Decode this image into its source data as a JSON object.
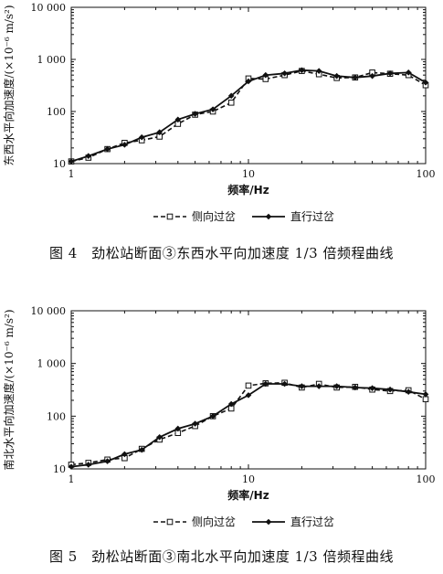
{
  "chart_data": [
    {
      "type": "line",
      "scale": "log-log",
      "xlabel": "频率/Hz",
      "ylabel": "东西水平向加速度/(×10⁻⁶ m/s²)",
      "xlim": [
        1,
        100
      ],
      "ylim": [
        10,
        10000
      ],
      "x_ticks": [
        "1",
        "10",
        "100"
      ],
      "y_ticks": [
        "10",
        "100",
        "1 000",
        "10 000"
      ],
      "legend_position": "bottom-center",
      "caption": "图 4　劲松站断面③东西水平向加速度 1/3 倍频程曲线",
      "series": [
        {
          "name": "侧向过岔",
          "style": "dashed",
          "marker": "square",
          "x": [
            1,
            1.25,
            1.6,
            2,
            2.5,
            3.15,
            4,
            5,
            6.3,
            8,
            10,
            12.5,
            16,
            20,
            25,
            31.5,
            40,
            50,
            63,
            80,
            100
          ],
          "y": [
            11,
            13,
            19,
            25,
            28,
            33,
            58,
            87,
            100,
            148,
            430,
            420,
            500,
            600,
            520,
            440,
            450,
            560,
            530,
            500,
            320
          ]
        },
        {
          "name": "直行过岔",
          "style": "solid",
          "marker": "diamond",
          "x": [
            1,
            1.25,
            1.6,
            2,
            2.5,
            3.15,
            4,
            5,
            6.3,
            8,
            10,
            12.5,
            16,
            20,
            25,
            31.5,
            40,
            50,
            63,
            80,
            100
          ],
          "y": [
            11,
            14,
            19,
            23,
            32,
            40,
            70,
            90,
            110,
            200,
            380,
            500,
            540,
            620,
            600,
            480,
            450,
            480,
            540,
            560,
            360
          ]
        }
      ]
    },
    {
      "type": "line",
      "scale": "log-log",
      "xlabel": "频率/Hz",
      "ylabel": "南北水平向加速度/(×10⁻⁶ m/s²)",
      "xlim": [
        1,
        100
      ],
      "ylim": [
        10,
        10000
      ],
      "x_ticks": [
        "1",
        "10",
        "100"
      ],
      "y_ticks": [
        "10",
        "100",
        "1 000",
        "10 000"
      ],
      "legend_position": "bottom-center",
      "caption": "图 5　劲松站断面③南北水平向加速度 1/3 倍频程曲线",
      "series": [
        {
          "name": "侧向过岔",
          "style": "dashed",
          "marker": "square",
          "x": [
            1,
            1.25,
            1.6,
            2,
            2.5,
            3.15,
            4,
            5,
            6.3,
            8,
            10,
            12.5,
            16,
            20,
            25,
            31.5,
            40,
            50,
            63,
            80,
            100
          ],
          "y": [
            12,
            13,
            15,
            16,
            24,
            36,
            48,
            65,
            100,
            140,
            380,
            420,
            430,
            350,
            410,
            350,
            360,
            320,
            300,
            310,
            210
          ]
        },
        {
          "name": "直行过岔",
          "style": "solid",
          "marker": "diamond",
          "x": [
            1,
            1.25,
            1.6,
            2,
            2.5,
            3.15,
            4,
            5,
            6.3,
            8,
            10,
            12.5,
            16,
            20,
            25,
            31.5,
            40,
            50,
            63,
            80,
            100
          ],
          "y": [
            11,
            12,
            14,
            19,
            23,
            40,
            58,
            72,
            100,
            170,
            250,
            410,
            410,
            370,
            370,
            370,
            350,
            340,
            320,
            290,
            260
          ]
        }
      ]
    }
  ]
}
